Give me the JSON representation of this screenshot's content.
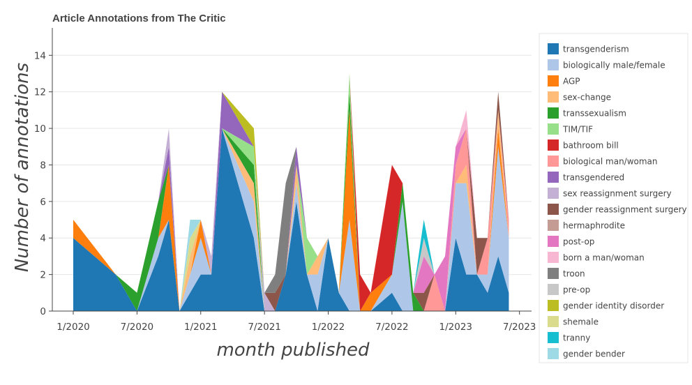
{
  "chart_data": {
    "type": "area",
    "stacked": true,
    "title": "Article Annotations from The Critic",
    "xlabel": "month published",
    "ylabel": "Number of annotations",
    "x_ticks": [
      "1/2020",
      "7/2020",
      "1/2021",
      "7/2021",
      "1/2022",
      "7/2022",
      "1/2023",
      "7/2023"
    ],
    "y_ticks": [
      0,
      2,
      4,
      6,
      8,
      10,
      12,
      14
    ],
    "ylim": [
      0,
      15.5
    ],
    "grid": "horizontal",
    "legend_position": "right",
    "x": [
      "1/2020",
      "5/2020",
      "7/2020",
      "9/2020",
      "10/2020",
      "11/2020",
      "12/2020",
      "1/2021",
      "2/2021",
      "3/2021",
      "6/2021",
      "7/2021",
      "8/2021",
      "9/2021",
      "10/2021",
      "11/2021",
      "12/2021",
      "1/2022",
      "2/2022",
      "3/2022",
      "4/2022",
      "5/2022",
      "7/2022",
      "8/2022",
      "9/2022",
      "10/2022",
      "11/2022",
      "12/2022",
      "1/2023",
      "2/2023",
      "3/2023",
      "4/2023",
      "5/2023",
      "6/2023"
    ],
    "series": [
      {
        "name": "transgenderism",
        "color": "#1f77b4",
        "values": [
          4,
          2,
          0,
          3,
          5,
          0,
          1,
          2,
          2,
          10,
          4,
          0,
          0,
          2,
          6,
          2,
          0,
          4,
          1,
          0,
          0,
          0,
          1,
          0,
          0,
          0,
          0,
          0,
          4,
          2,
          2,
          1,
          3,
          1
        ]
      },
      {
        "name": "biologically male/female",
        "color": "#aec7e8",
        "values": [
          0,
          0,
          0,
          1,
          0,
          0,
          1,
          2,
          0,
          0,
          2,
          0,
          0,
          0,
          1,
          0,
          2,
          0,
          0,
          5,
          0,
          0,
          1,
          6,
          0,
          0,
          0,
          0,
          3,
          5,
          0,
          1,
          6,
          3
        ]
      },
      {
        "name": "AGP",
        "color": "#ff7f0e",
        "values": [
          1,
          0,
          0,
          0,
          3,
          0,
          0,
          1,
          0,
          0,
          0,
          0,
          0,
          0,
          0,
          0,
          0,
          0,
          0,
          6,
          0,
          1,
          0,
          0,
          0,
          0,
          0,
          0,
          0,
          0,
          0,
          0,
          1,
          0
        ]
      },
      {
        "name": "sex-change",
        "color": "#ffbb78",
        "values": [
          0,
          0,
          0,
          0,
          0,
          0,
          1,
          0,
          0,
          0,
          1,
          0,
          0,
          0,
          1,
          0,
          1,
          0,
          0,
          0,
          0,
          0,
          0,
          0,
          0,
          0,
          0,
          0,
          0,
          1,
          0,
          0,
          1,
          0
        ]
      },
      {
        "name": "transsexualism",
        "color": "#2ca02c",
        "values": [
          0,
          0,
          1,
          2,
          0,
          0,
          0,
          0,
          0,
          0,
          1,
          0,
          0,
          0,
          0,
          0,
          0,
          0,
          0,
          1,
          0,
          0,
          0,
          1,
          1,
          0,
          0,
          0,
          0,
          0,
          0,
          0,
          0,
          0
        ]
      },
      {
        "name": "TIM/TIF",
        "color": "#98df8a",
        "values": [
          0,
          0,
          0,
          0,
          0,
          0,
          0,
          0,
          0,
          0,
          1,
          0,
          0,
          0,
          0,
          2,
          0,
          0,
          0,
          1,
          0,
          0,
          0,
          0,
          0,
          0,
          0,
          0,
          0,
          0,
          0,
          0,
          0,
          0
        ]
      },
      {
        "name": "bathroom bill",
        "color": "#d62728",
        "values": [
          0,
          0,
          0,
          0,
          0,
          0,
          0,
          0,
          0,
          0,
          0,
          0,
          0,
          0,
          0,
          0,
          0,
          0,
          0,
          0,
          2,
          0,
          6,
          0,
          0,
          0,
          0,
          0,
          0,
          0,
          0,
          0,
          0,
          0
        ]
      },
      {
        "name": "biological man/woman",
        "color": "#ff9896",
        "values": [
          0,
          0,
          0,
          0,
          0,
          0,
          0,
          0,
          0,
          0,
          0,
          0,
          0,
          0,
          0,
          0,
          0,
          0,
          0,
          0,
          0,
          0,
          0,
          0,
          0,
          0,
          2,
          0,
          1,
          2,
          0,
          2,
          0,
          1
        ]
      },
      {
        "name": "transgendered",
        "color": "#9467bd",
        "values": [
          0,
          0,
          0,
          0,
          1,
          0,
          0,
          0,
          0,
          2,
          0,
          0,
          0,
          0,
          1,
          0,
          0,
          0,
          0,
          0,
          0,
          0,
          0,
          0,
          0,
          0,
          0,
          0,
          0,
          0,
          0,
          0,
          0,
          0
        ]
      },
      {
        "name": "sex reassignment surgery",
        "color": "#c5b0d5",
        "values": [
          0,
          0,
          0,
          0,
          1,
          0,
          0,
          0,
          1,
          0,
          0,
          1,
          0,
          0,
          0,
          0,
          0,
          0,
          0,
          0,
          0,
          0,
          0,
          0,
          0,
          0,
          0,
          0,
          0,
          0,
          0,
          0,
          0,
          0
        ]
      },
      {
        "name": "gender reassignment surgery",
        "color": "#8c564b",
        "values": [
          0,
          0,
          0,
          0,
          0,
          0,
          0,
          0,
          0,
          0,
          0,
          0,
          1,
          0,
          0,
          0,
          0,
          0,
          0,
          0,
          0,
          0,
          0,
          0,
          0,
          1,
          0,
          0,
          0,
          0,
          2,
          0,
          1,
          0
        ]
      },
      {
        "name": "hermaphrodite",
        "color": "#c49c94",
        "values": [
          0,
          0,
          0,
          0,
          0,
          0,
          0,
          0,
          0,
          0,
          0,
          0,
          0,
          0,
          0,
          0,
          0,
          0,
          0,
          0,
          0,
          0,
          0,
          0,
          0,
          0,
          0,
          0,
          0,
          0,
          0,
          0,
          0,
          0
        ]
      },
      {
        "name": "post-op",
        "color": "#e377c2",
        "values": [
          0,
          0,
          0,
          0,
          0,
          0,
          0,
          0,
          0,
          0,
          0,
          0,
          0,
          0,
          0,
          0,
          0,
          0,
          0,
          0,
          0,
          0,
          0,
          0,
          0,
          2,
          0,
          3,
          1,
          0,
          0,
          0,
          0,
          0
        ]
      },
      {
        "name": "born a man/woman",
        "color": "#f7b6d2",
        "values": [
          0,
          0,
          0,
          0,
          0,
          0,
          0,
          0,
          0,
          0,
          0,
          0,
          0,
          0,
          0,
          0,
          0,
          0,
          0,
          0,
          0,
          0,
          0,
          0,
          0,
          0,
          0,
          0,
          0,
          1,
          0,
          0,
          0,
          0
        ]
      },
      {
        "name": "troon",
        "color": "#7f7f7f",
        "values": [
          0,
          0,
          0,
          0,
          0,
          0,
          0,
          0,
          0,
          0,
          0,
          0,
          1,
          5,
          0,
          0,
          0,
          0,
          0,
          0,
          0,
          0,
          0,
          0,
          0,
          0,
          0,
          0,
          0,
          0,
          0,
          0,
          0,
          0
        ]
      },
      {
        "name": "pre-op",
        "color": "#c7c7c7",
        "values": [
          0,
          0,
          0,
          0,
          0,
          0,
          0,
          0,
          0,
          0,
          0,
          0,
          0,
          0,
          0,
          0,
          0,
          0,
          0,
          0,
          0,
          0,
          0,
          0,
          0,
          1,
          0,
          0,
          0,
          0,
          0,
          0,
          0,
          0
        ]
      },
      {
        "name": "gender identity disorder",
        "color": "#bcbd22",
        "values": [
          0,
          0,
          0,
          0,
          0,
          0,
          0,
          0,
          0,
          0,
          1,
          0,
          0,
          0,
          0,
          0,
          0,
          0,
          0,
          0,
          0,
          0,
          0,
          0,
          0,
          0,
          0,
          0,
          0,
          0,
          0,
          0,
          0,
          0
        ]
      },
      {
        "name": "shemale",
        "color": "#dbdb8d",
        "values": [
          0,
          0,
          0,
          0,
          0,
          0,
          1,
          0,
          0,
          0,
          0,
          0,
          0,
          0,
          0,
          0,
          0,
          0,
          0,
          0,
          0,
          0,
          0,
          0,
          0,
          0,
          0,
          0,
          0,
          0,
          0,
          0,
          0,
          0
        ]
      },
      {
        "name": "tranny",
        "color": "#17becf",
        "values": [
          0,
          0,
          0,
          0,
          0,
          0,
          0,
          0,
          0,
          0,
          0,
          0,
          0,
          0,
          0,
          0,
          0,
          0,
          0,
          0,
          0,
          0,
          0,
          0,
          0,
          1,
          0,
          0,
          0,
          0,
          0,
          0,
          0,
          0
        ]
      },
      {
        "name": "gender bender",
        "color": "#9edae5",
        "values": [
          0,
          0,
          0,
          0,
          0,
          0,
          1,
          0,
          0,
          0,
          0,
          0,
          0,
          0,
          0,
          0,
          0,
          0,
          0,
          0,
          0,
          0,
          0,
          0,
          0,
          0,
          0,
          0,
          0,
          0,
          0,
          0,
          0,
          0
        ]
      }
    ]
  }
}
